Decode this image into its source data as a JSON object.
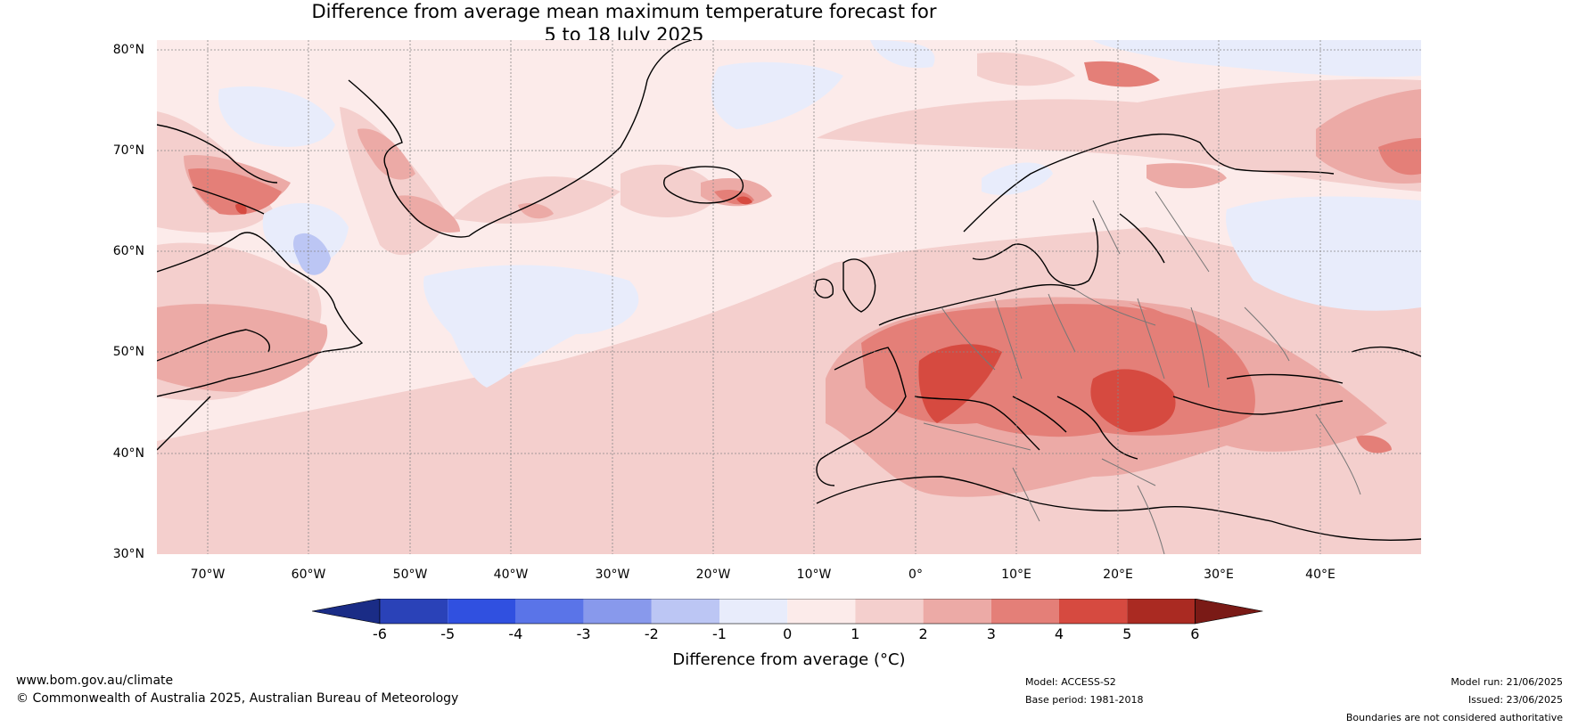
{
  "title": {
    "line1": "Difference from average mean maximum temperature forecast for",
    "line2": "5 to 18 July 2025"
  },
  "map": {
    "region": "North Atlantic and Europe",
    "lat_range": [
      30,
      80
    ],
    "lon_range": [
      -75,
      50
    ],
    "lat_labels": [
      "80°N",
      "70°N",
      "60°N",
      "50°N",
      "40°N",
      "30°N"
    ],
    "lon_labels": [
      "70°W",
      "60°W",
      "50°W",
      "40°W",
      "30°W",
      "20°W",
      "10°W",
      "0°",
      "10°E",
      "20°E",
      "30°E",
      "40°E"
    ],
    "gridlines": true
  },
  "colorbar": {
    "title": "Difference from average (°C)",
    "ticks": [
      "-6",
      "-5",
      "-4",
      "-3",
      "-2",
      "-1",
      "0",
      "1",
      "2",
      "3",
      "4",
      "5",
      "6"
    ],
    "colors": [
      "#1a2c86",
      "#2a42b8",
      "#3050e0",
      "#5a74e8",
      "#8899ec",
      "#bcc6f4",
      "#e8ecfb",
      "#fcebea",
      "#f4cfcd",
      "#ecaaa6",
      "#e47f78",
      "#d64a40",
      "#aa2a22",
      "#7a1a16"
    ],
    "extend": "both"
  },
  "footer": {
    "website": "www.bom.gov.au/climate",
    "copyright": "© Commonwealth of Australia 2025, Australian Bureau of Meteorology",
    "model": "Model: ACCESS-S2",
    "base_period": "Base period: 1981-2018",
    "model_run": "Model run: 21/06/2025",
    "issued": "Issued: 23/06/2025",
    "disclaimer": "Boundaries are not considered authoritative"
  }
}
